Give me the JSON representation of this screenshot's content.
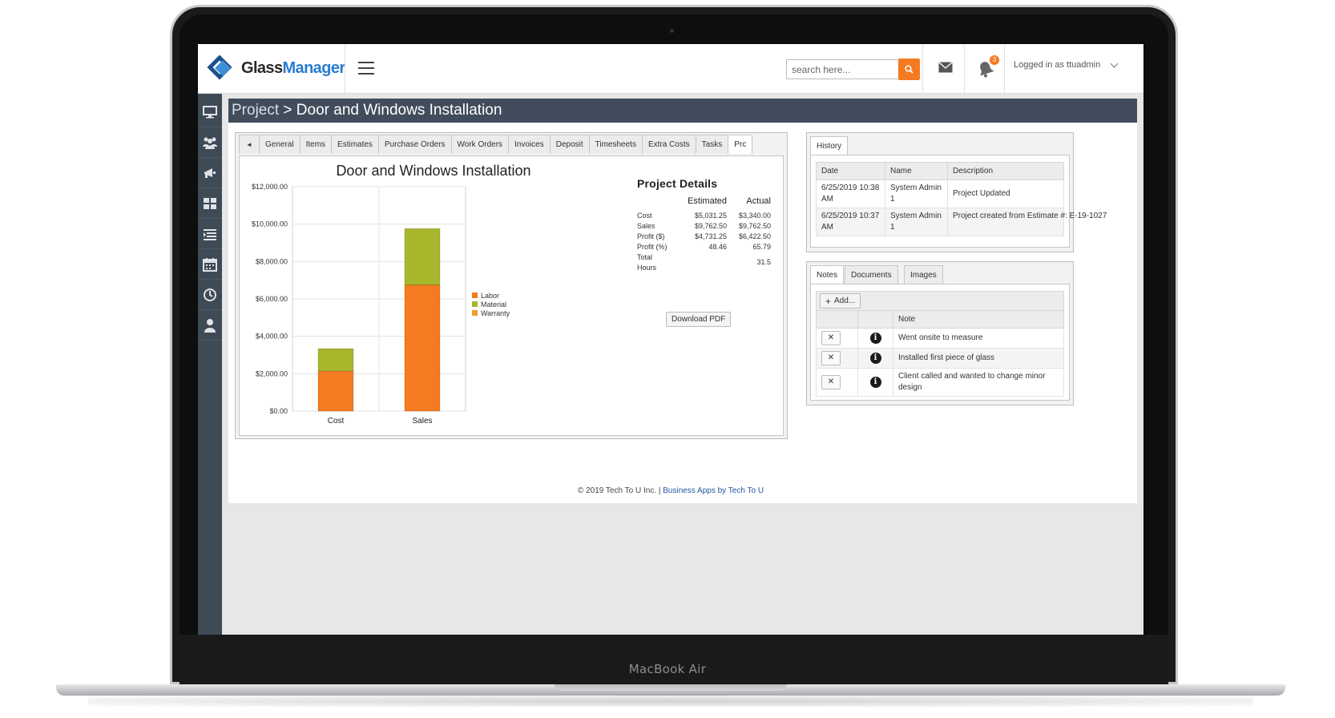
{
  "device": {
    "brand_label": "MacBook Air"
  },
  "header": {
    "logo_glass": "Glass",
    "logo_manager": "Manager",
    "search_placeholder": "search here...",
    "notification_count": "3",
    "user_label": "Logged in as ttuadmin"
  },
  "sidebar": {
    "items": [
      "monitor-icon",
      "users-icon",
      "megaphone-icon",
      "grid-icon",
      "list-icon",
      "calendar-icon",
      "clock-icon",
      "person-icon"
    ]
  },
  "page": {
    "crumb": "Project",
    "separator": " > ",
    "title": "Door and Windows Installation"
  },
  "tabs": [
    "General",
    "Items",
    "Estimates",
    "Purchase Orders",
    "Work Orders",
    "Invoices",
    "Deposit",
    "Timesheets",
    "Extra Costs",
    "Tasks",
    "Prc"
  ],
  "chart_data": {
    "type": "bar",
    "stacked": true,
    "title": "Door and Windows Installation",
    "categories": [
      "Cost",
      "Sales"
    ],
    "series": [
      {
        "name": "Labor",
        "color": "#f47b20",
        "values": [
          2150,
          6750
        ]
      },
      {
        "name": "Material",
        "color": "#a8b62c",
        "values": [
          1190,
          3010
        ]
      },
      {
        "name": "Warranty",
        "color": "#f29c2f",
        "values": [
          0,
          0
        ]
      }
    ],
    "ylim": [
      0,
      12000
    ],
    "yticks": [
      "$0.00",
      "$2,000.00",
      "$4,000.00",
      "$6,000.00",
      "$8,000.00",
      "$10,000.00",
      "$12,000.00"
    ],
    "grid": true,
    "legend_position": "right"
  },
  "project_details": {
    "title": "Project Details",
    "col_estimated": "Estimated",
    "col_actual": "Actual",
    "rows": [
      {
        "label": "Cost",
        "estimated": "$5,031.25",
        "actual": "$3,340.00"
      },
      {
        "label": "Sales",
        "estimated": "$9,762.50",
        "actual": "$9,762.50"
      },
      {
        "label": "Profit ($)",
        "estimated": "$4,731.25",
        "actual": "$6,422.50"
      },
      {
        "label": "Profit (%)",
        "estimated": "48.46",
        "actual": "65.79"
      }
    ],
    "hours_label_1": "Total",
    "hours_label_2": "Hours",
    "hours_actual": "31.5",
    "download_label": "Download PDF"
  },
  "history": {
    "tab": "History",
    "headers": [
      "Date",
      "Name",
      "Description"
    ],
    "rows": [
      {
        "date": "6/25/2019 10:38 AM",
        "name": "System Admin 1",
        "description": "Project Updated"
      },
      {
        "date": "6/25/2019 10:37 AM",
        "name": "System Admin 1",
        "description": "Project created from Estimate #: E-19-1027"
      }
    ]
  },
  "notes": {
    "tabs": [
      "Notes",
      "Documents",
      "Images"
    ],
    "add_label": "Add...",
    "header_note": "Note",
    "rows": [
      "Went onsite to measure",
      "Installed first piece of glass",
      "Client called and wanted to change minor design"
    ]
  },
  "footer": {
    "copyright": "© 2019 Tech To U Inc.",
    "separator": " | ",
    "link": "Business Apps by Tech To U"
  }
}
